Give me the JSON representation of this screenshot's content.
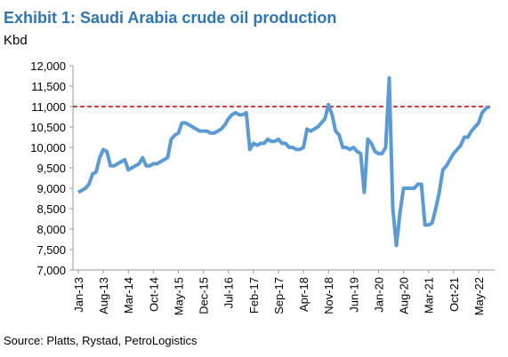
{
  "chart_data": {
    "type": "line",
    "title": "Exhibit 1: Saudi Arabia crude oil production",
    "y_label": "Kbd",
    "source": "Source: Platts, Rystad, PetroLogistics",
    "categories": [
      "Jan-13",
      null,
      null,
      null,
      null,
      null,
      null,
      "Aug-13",
      null,
      null,
      null,
      null,
      null,
      null,
      "Mar-14",
      null,
      null,
      null,
      null,
      null,
      null,
      "Oct-14",
      null,
      null,
      null,
      null,
      null,
      null,
      "May-15",
      null,
      null,
      null,
      null,
      null,
      null,
      "Dec-15",
      null,
      null,
      null,
      null,
      null,
      null,
      "Jul-16",
      null,
      null,
      null,
      null,
      null,
      null,
      "Feb-17",
      null,
      null,
      null,
      null,
      null,
      null,
      "Sep-17",
      null,
      null,
      null,
      null,
      null,
      null,
      "Apr-18",
      null,
      null,
      null,
      null,
      null,
      null,
      "Nov-18",
      null,
      null,
      null,
      null,
      null,
      null,
      "Jun-19",
      null,
      null,
      null,
      null,
      null,
      null,
      "Jan-20",
      null,
      null,
      null,
      null,
      null,
      null,
      "Aug-20",
      null,
      null,
      null,
      null,
      null,
      null,
      "Mar-21",
      null,
      null,
      null,
      null,
      null,
      null,
      "Oct-21",
      null,
      null,
      null,
      null,
      null,
      null,
      "May-22",
      null,
      null,
      null
    ],
    "series": [
      {
        "name": "Saudi Arabia crude oil production",
        "color": "#5b9bd5",
        "values": [
          8900,
          8950,
          9000,
          9100,
          9350,
          9400,
          9750,
          9950,
          9900,
          9550,
          9550,
          9600,
          9650,
          9700,
          9450,
          9500,
          9550,
          9600,
          9750,
          9550,
          9550,
          9600,
          9600,
          9650,
          9700,
          9750,
          10200,
          10300,
          10350,
          10600,
          10600,
          10550,
          10500,
          10450,
          10400,
          10400,
          10400,
          10350,
          10350,
          10400,
          10450,
          10550,
          10700,
          10800,
          10850,
          10800,
          10800,
          10850,
          9950,
          10100,
          10050,
          10100,
          10100,
          10200,
          10150,
          10150,
          10200,
          10100,
          10100,
          10000,
          10000,
          9950,
          9950,
          10000,
          10450,
          10400,
          10450,
          10500,
          10600,
          10700,
          11050,
          10800,
          10400,
          10300,
          10000,
          10000,
          9950,
          10000,
          9900,
          9850,
          8900,
          10200,
          10100,
          9900,
          9850,
          9850,
          10000,
          11700,
          8500,
          7600,
          8400,
          9000,
          9000,
          9000,
          9000,
          9100,
          9100,
          8100,
          8100,
          8150,
          8500,
          8900,
          9450,
          9550,
          9700,
          9850,
          9950,
          10050,
          10250,
          10250,
          10400,
          10500,
          10600,
          10850,
          10950,
          11000
        ]
      }
    ],
    "reference_line": {
      "value": 11000,
      "color": "#c00000"
    },
    "ylim": [
      7000,
      12000
    ],
    "yticks": [
      {
        "value": 7000,
        "label": "7,000"
      },
      {
        "value": 7500,
        "label": "7,500"
      },
      {
        "value": 8000,
        "label": "8,000"
      },
      {
        "value": 8500,
        "label": "8,500"
      },
      {
        "value": 9000,
        "label": "9,000"
      },
      {
        "value": 9500,
        "label": "9,500"
      },
      {
        "value": 10000,
        "label": "10,000"
      },
      {
        "value": 10500,
        "label": "10,500"
      },
      {
        "value": 11000,
        "label": "11,000"
      },
      {
        "value": 11500,
        "label": "11,500"
      },
      {
        "value": 12000,
        "label": "12,000"
      }
    ],
    "grid": false
  }
}
